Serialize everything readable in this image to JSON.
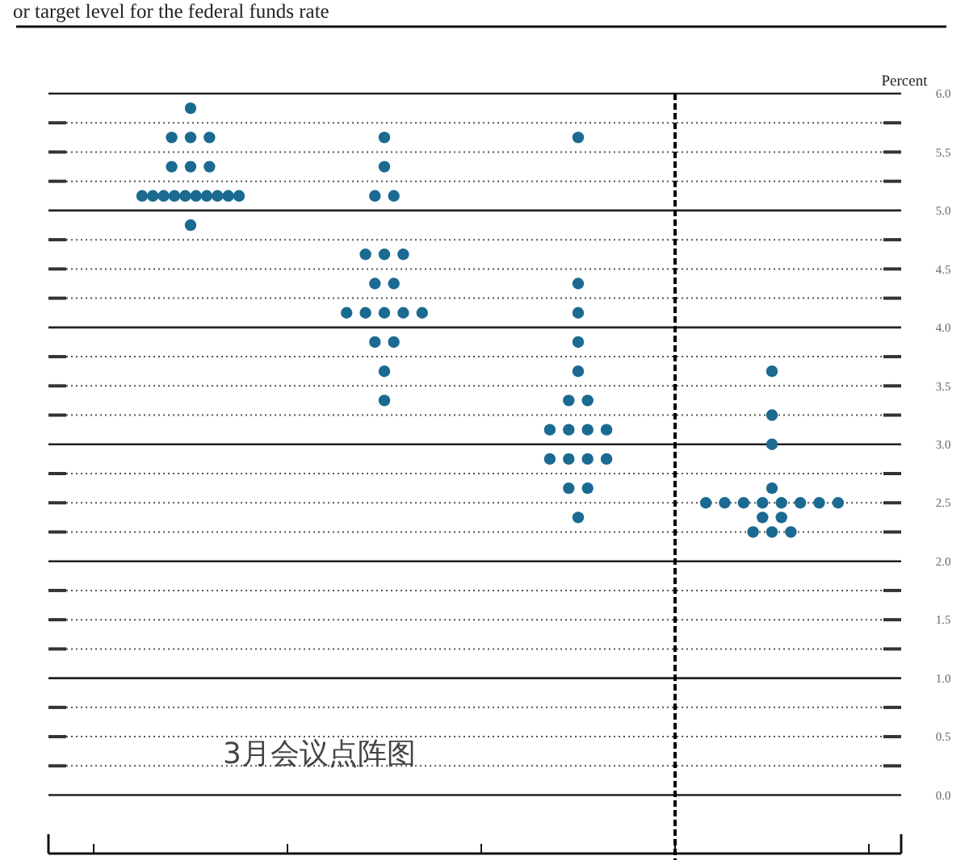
{
  "chart_data": {
    "type": "scatter",
    "title": "or target level for the federal funds rate",
    "ylabel": "Percent",
    "annotations": [
      "3月会议点阵图"
    ],
    "categories": [
      null,
      null,
      null,
      null
    ],
    "series": [
      {
        "color": "#1a6a91",
        "values": [
          5.875,
          5.625,
          5.625,
          3.625
        ]
      },
      {
        "color": "#1a6a91",
        "values": [
          5.625,
          5.375,
          4.375,
          3.25
        ]
      },
      {
        "color": "#1a6a91",
        "values": [
          5.625,
          5.125,
          4.125,
          3.0
        ]
      },
      {
        "color": "#1a6a91",
        "values": [
          5.625,
          5.125,
          3.875,
          2.625
        ]
      },
      {
        "color": "#1a6a91",
        "values": [
          5.375,
          4.625,
          3.625,
          2.5
        ]
      },
      {
        "color": "#1a6a91",
        "values": [
          5.375,
          4.625,
          3.375,
          2.5
        ]
      },
      {
        "color": "#1a6a91",
        "values": [
          5.375,
          4.625,
          3.375,
          2.5
        ]
      },
      {
        "color": "#1a6a91",
        "values": [
          5.125,
          4.375,
          3.125,
          2.5
        ]
      },
      {
        "color": "#1a6a91",
        "values": [
          5.125,
          4.375,
          3.125,
          2.5
        ]
      },
      {
        "color": "#1a6a91",
        "values": [
          5.125,
          4.125,
          3.125,
          2.5
        ]
      },
      {
        "color": "#1a6a91",
        "values": [
          5.125,
          4.125,
          3.125,
          2.5
        ]
      },
      {
        "color": "#1a6a91",
        "values": [
          5.125,
          4.125,
          2.875,
          2.5
        ]
      },
      {
        "color": "#1a6a91",
        "values": [
          5.125,
          4.125,
          2.875,
          2.375
        ]
      },
      {
        "color": "#1a6a91",
        "values": [
          5.125,
          4.125,
          2.875,
          2.375
        ]
      },
      {
        "color": "#1a6a91",
        "values": [
          5.125,
          3.875,
          2.875,
          2.25
        ]
      },
      {
        "color": "#1a6a91",
        "values": [
          5.125,
          3.875,
          2.625,
          2.25
        ]
      },
      {
        "color": "#1a6a91",
        "values": [
          5.125,
          3.625,
          2.625,
          2.25
        ]
      },
      {
        "color": "#1a6a91",
        "values": [
          4.875,
          3.375,
          2.375,
          null
        ]
      }
    ],
    "ylim": [
      -0.5,
      6
    ],
    "yticks": [
      {
        "value": 0,
        "label": "0.0"
      },
      {
        "value": 0.25,
        "label": null
      },
      {
        "value": 0.5,
        "label": "0.5"
      },
      {
        "value": 0.75,
        "label": null
      },
      {
        "value": 1,
        "label": "1.0"
      },
      {
        "value": 1.25,
        "label": null
      },
      {
        "value": 1.5,
        "label": "1.5"
      },
      {
        "value": 1.75,
        "label": null
      },
      {
        "value": 2,
        "label": "2.0"
      },
      {
        "value": 2.25,
        "label": null
      },
      {
        "value": 2.5,
        "label": "2.5"
      },
      {
        "value": 2.75,
        "label": null
      },
      {
        "value": 3,
        "label": "3.0"
      },
      {
        "value": 3.25,
        "label": null
      },
      {
        "value": 3.5,
        "label": "3.5"
      },
      {
        "value": 3.75,
        "label": null
      },
      {
        "value": 4,
        "label": "4.0"
      },
      {
        "value": 4.25,
        "label": null
      },
      {
        "value": 4.5,
        "label": "4.5"
      },
      {
        "value": 4.75,
        "label": null
      },
      {
        "value": 5,
        "label": "5.0"
      },
      {
        "value": 5.25,
        "label": null
      },
      {
        "value": 5.5,
        "label": "5.5"
      },
      {
        "value": 5.75,
        "label": null
      },
      {
        "value": 6,
        "label": "6.0"
      }
    ],
    "grid": "y",
    "marker": "circle"
  }
}
